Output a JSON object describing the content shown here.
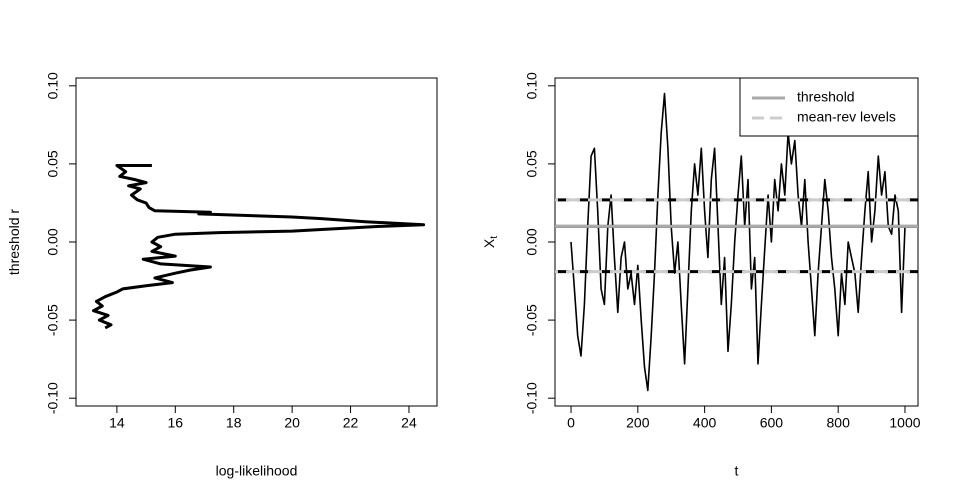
{
  "chart_data": [
    {
      "type": "line",
      "xlabel": "log-likelihood",
      "ylabel": "threshold r",
      "x": [
        15.2,
        14.0,
        14.3,
        14.1,
        14.6,
        15.0,
        14.4,
        14.8,
        14.5,
        14.7,
        15.0,
        15.1,
        15.3,
        17.2,
        16.8,
        20.0,
        21.0,
        22.5,
        24.5,
        23.0,
        21.0,
        20.0,
        17.5,
        16.0,
        15.4,
        15.2,
        15.5,
        15.2,
        16.0,
        14.9,
        15.5,
        17.2,
        16.5,
        16.0,
        15.3,
        15.9,
        15.0,
        14.2,
        14.0,
        13.6,
        13.3,
        13.5,
        13.2,
        13.7,
        13.4,
        13.8,
        13.6
      ],
      "values": [
        0.049,
        0.049,
        0.045,
        0.042,
        0.04,
        0.038,
        0.036,
        0.034,
        0.03,
        0.027,
        0.025,
        0.022,
        0.02,
        0.019,
        0.018,
        0.016,
        0.015,
        0.013,
        0.011,
        0.01,
        0.008,
        0.007,
        0.006,
        0.005,
        0.003,
        0.0,
        -0.003,
        -0.006,
        -0.009,
        -0.011,
        -0.014,
        -0.016,
        -0.018,
        -0.02,
        -0.023,
        -0.026,
        -0.028,
        -0.03,
        -0.032,
        -0.035,
        -0.038,
        -0.041,
        -0.044,
        -0.047,
        -0.05,
        -0.053,
        -0.055
      ],
      "color": "#000000",
      "xlim": [
        12.6,
        24.96
      ],
      "xticks": [
        14,
        16,
        18,
        20,
        22,
        24
      ],
      "ylim": [
        -0.105,
        0.105
      ],
      "yticks": [
        {
          "value": -0.1,
          "label": "-0.10"
        },
        -0.05,
        {
          "value": 0,
          "label": "0.00"
        },
        0.05,
        {
          "value": 0.1,
          "label": "0.10"
        }
      ]
    },
    {
      "type": "line",
      "xlabel": "t",
      "ylabel": "X",
      "ylabel_subscript": "t",
      "x": [
        0,
        10,
        20,
        30,
        40,
        50,
        60,
        70,
        80,
        90,
        100,
        110,
        120,
        130,
        140,
        150,
        160,
        170,
        180,
        190,
        200,
        210,
        220,
        230,
        240,
        250,
        260,
        270,
        280,
        290,
        300,
        310,
        320,
        330,
        340,
        350,
        360,
        370,
        380,
        390,
        400,
        410,
        420,
        430,
        440,
        450,
        460,
        470,
        480,
        490,
        500,
        510,
        520,
        530,
        540,
        550,
        560,
        570,
        580,
        590,
        600,
        610,
        620,
        630,
        640,
        650,
        660,
        670,
        680,
        690,
        700,
        710,
        720,
        730,
        740,
        750,
        760,
        770,
        780,
        790,
        800,
        810,
        820,
        830,
        840,
        850,
        860,
        870,
        880,
        890,
        900,
        910,
        920,
        930,
        940,
        950,
        960,
        970,
        980,
        990,
        1000
      ],
      "values": [
        0.0,
        -0.03,
        -0.06,
        -0.073,
        -0.04,
        0.01,
        0.055,
        0.06,
        0.02,
        -0.03,
        -0.04,
        0.01,
        0.03,
        -0.01,
        -0.045,
        -0.01,
        0.0,
        -0.03,
        -0.02,
        -0.04,
        -0.015,
        -0.05,
        -0.08,
        -0.095,
        -0.06,
        -0.02,
        0.03,
        0.07,
        0.095,
        0.06,
        0.01,
        -0.02,
        0.0,
        -0.04,
        -0.078,
        -0.03,
        0.02,
        0.05,
        0.03,
        0.06,
        0.02,
        -0.01,
        0.04,
        0.06,
        0.01,
        -0.04,
        -0.01,
        -0.07,
        -0.04,
        0.0,
        0.03,
        0.055,
        0.01,
        0.04,
        -0.03,
        -0.01,
        -0.078,
        -0.04,
        -0.005,
        0.03,
        0.0,
        0.04,
        0.02,
        0.05,
        0.03,
        0.07,
        0.05,
        0.065,
        0.03,
        0.01,
        0.04,
        0.0,
        -0.03,
        -0.06,
        -0.02,
        0.01,
        0.04,
        0.02,
        -0.01,
        -0.03,
        -0.06,
        -0.02,
        -0.04,
        0.0,
        -0.01,
        -0.02,
        -0.045,
        -0.01,
        0.02,
        0.045,
        0.0,
        0.02,
        0.055,
        0.03,
        0.045,
        0.01,
        0.005,
        0.03,
        0.02,
        -0.045,
        0.01
      ],
      "color": "#000000",
      "xlim": [
        -48,
        1039
      ],
      "xticks": [
        0,
        200,
        400,
        600,
        800,
        1000
      ],
      "ylim": [
        -0.105,
        0.105
      ],
      "yticks": [
        {
          "value": -0.1,
          "label": "-0.10"
        },
        -0.05,
        {
          "value": 0,
          "label": "0.00"
        },
        0.05,
        {
          "value": 0.1,
          "label": "0.10"
        }
      ],
      "reference_lines": [
        {
          "name": "threshold",
          "values": [
            0.01
          ],
          "color": "#aaaaaa",
          "dashed": false
        },
        {
          "name": "mean-rev levels",
          "values": [
            0.027,
            -0.019
          ],
          "color": "#cccccc",
          "dashed": true
        }
      ],
      "legend": "top-right"
    }
  ]
}
